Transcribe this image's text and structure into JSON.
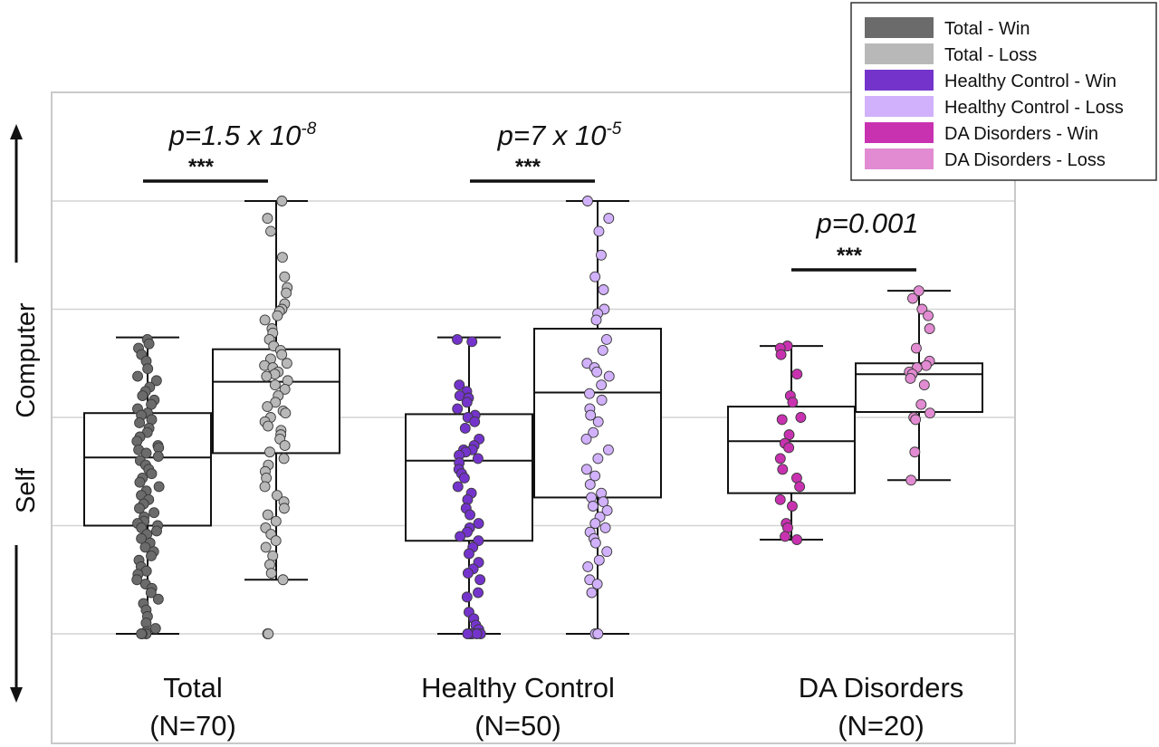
{
  "chart_data": {
    "type": "box",
    "y_axis_labels": {
      "lower": "Self",
      "upper": "Computer"
    },
    "ylim": [
      0,
      5
    ],
    "grid": "horizontal",
    "legend_position": "top-right",
    "legend": [
      {
        "label": "Total - Win",
        "color": "#6b6b6b"
      },
      {
        "label": "Total - Loss",
        "color": "#b8b8b8"
      },
      {
        "label": "Healthy Control - Win",
        "color": "#7434cc"
      },
      {
        "label": "Healthy Control - Loss",
        "color": "#d2b1fc"
      },
      {
        "label": "DA Disorders - Win",
        "color": "#c832b0"
      },
      {
        "label": "DA Disorders - Loss",
        "color": "#e28bd2"
      }
    ],
    "groups": [
      {
        "name": "Total",
        "n_label": "(N=70)",
        "pvalue": {
          "base": "p=1.5 x 10",
          "exp": "-8"
        },
        "stars": "***",
        "boxes": [
          {
            "condition": "Win",
            "color": "#6b6b6b",
            "whisker_low": 0.0,
            "q1": 1.0,
            "median": 1.63,
            "q3": 2.04,
            "whisker_high": 2.74,
            "points": [
              2.72,
              2.68,
              2.64,
              2.58,
              2.52,
              2.45,
              2.38,
              2.34,
              2.28,
              2.24,
              2.2,
              2.16,
              2.12,
              2.08,
              2.04,
              2.02,
              1.98,
              1.95,
              1.9,
              1.86,
              1.82,
              1.78,
              1.74,
              1.72,
              1.7,
              1.67,
              1.64,
              1.6,
              1.56,
              1.52,
              1.48,
              1.44,
              1.4,
              1.36,
              1.32,
              1.28,
              1.24,
              1.2,
              1.16,
              1.12,
              1.08,
              1.04,
              1.02,
              1.0,
              0.98,
              0.95,
              0.92,
              0.88,
              0.84,
              0.8,
              0.76,
              0.72,
              0.68,
              0.62,
              0.58,
              0.55,
              0.5,
              0.46,
              0.42,
              0.38,
              0.32,
              0.28,
              0.22,
              0.16,
              0.1,
              0.05,
              0.02,
              0.0,
              0.0,
              0.0
            ]
          },
          {
            "condition": "Loss",
            "color": "#b8b8b8",
            "whisker_low": 0.5,
            "q1": 1.67,
            "median": 2.33,
            "q3": 2.63,
            "whisker_high": 4.0,
            "points": [
              4.0,
              3.84,
              3.72,
              3.48,
              3.3,
              3.2,
              3.15,
              3.05,
              3.0,
              2.98,
              2.94,
              2.9,
              2.82,
              2.78,
              2.72,
              2.66,
              2.62,
              2.58,
              2.54,
              2.5,
              2.48,
              2.46,
              2.42,
              2.4,
              2.38,
              2.34,
              2.3,
              2.26,
              2.2,
              2.14,
              2.1,
              2.06,
              2.04,
              2.0,
              1.96,
              1.92,
              1.88,
              1.84,
              1.8,
              1.74,
              1.68,
              1.62,
              1.56,
              1.5,
              1.44,
              1.36,
              1.28,
              1.22,
              1.16,
              1.1,
              1.04,
              0.98,
              0.92,
              0.86,
              0.8,
              0.72,
              0.64,
              0.56,
              0.5,
              0.0,
              0.0
            ]
          }
        ]
      },
      {
        "name": "Healthy Control",
        "n_label": "(N=50)",
        "pvalue": {
          "base": "p=7 x 10",
          "exp": "-5"
        },
        "stars": "***",
        "boxes": [
          {
            "condition": "Win",
            "color": "#7434cc",
            "whisker_low": 0.0,
            "q1": 0.86,
            "median": 1.6,
            "q3": 2.03,
            "whisker_high": 2.74,
            "points": [
              2.72,
              2.7,
              2.3,
              2.24,
              2.2,
              2.18,
              2.14,
              2.08,
              2.02,
              2.0,
              1.96,
              1.9,
              1.8,
              1.74,
              1.7,
              1.7,
              1.68,
              1.65,
              1.62,
              1.58,
              1.52,
              1.48,
              1.44,
              1.36,
              1.3,
              1.24,
              1.16,
              1.1,
              1.02,
              0.98,
              0.94,
              0.9,
              0.86,
              0.8,
              0.74,
              0.66,
              0.6,
              0.56,
              0.5,
              0.38,
              0.34,
              0.2,
              0.14,
              0.08,
              0.04,
              0.0,
              0.0,
              0.0,
              0.0,
              0.0
            ]
          },
          {
            "condition": "Loss",
            "color": "#d2b1fc",
            "whisker_low": 0.0,
            "q1": 1.26,
            "median": 2.23,
            "q3": 2.82,
            "whisker_high": 4.0,
            "points": [
              4.0,
              3.84,
              3.72,
              3.5,
              3.3,
              3.18,
              3.0,
              2.96,
              2.9,
              2.72,
              2.62,
              2.5,
              2.46,
              2.42,
              2.38,
              2.3,
              2.22,
              2.16,
              2.08,
              2.02,
              1.96,
              1.86,
              1.8,
              1.7,
              1.62,
              1.52,
              1.46,
              1.38,
              1.3,
              1.26,
              1.22,
              1.18,
              1.14,
              1.08,
              1.02,
              0.98,
              0.94,
              0.88,
              0.84,
              0.76,
              0.68,
              0.62,
              0.5,
              0.46,
              0.38,
              0.0,
              0.0
            ]
          }
        ]
      },
      {
        "name": "DA Disorders",
        "n_label": "(N=20)",
        "pvalue": {
          "base": "p=0.001",
          "exp": ""
        },
        "stars": "***",
        "boxes": [
          {
            "condition": "Win",
            "color": "#c832b0",
            "whisker_low": 0.87,
            "q1": 1.3,
            "median": 1.78,
            "q3": 2.1,
            "whisker_high": 2.66,
            "points": [
              2.66,
              2.64,
              2.58,
              2.4,
              2.2,
              2.14,
              2.0,
              1.98,
              1.84,
              1.76,
              1.72,
              1.62,
              1.52,
              1.44,
              1.36,
              1.24,
              1.18,
              1.02,
              0.98,
              0.9,
              0.87
            ]
          },
          {
            "condition": "Loss",
            "color": "#e28bd2",
            "whisker_low": 1.42,
            "q1": 2.05,
            "median": 2.4,
            "q3": 2.5,
            "whisker_high": 3.17,
            "points": [
              3.17,
              3.1,
              3.0,
              2.94,
              2.82,
              2.64,
              2.52,
              2.48,
              2.46,
              2.42,
              2.4,
              2.36,
              2.3,
              2.12,
              2.04,
              2.0,
              1.98,
              1.68,
              1.42
            ]
          }
        ]
      }
    ]
  }
}
